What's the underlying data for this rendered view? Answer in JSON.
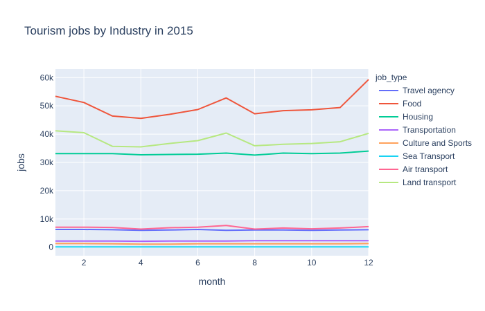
{
  "chart_data": {
    "type": "line",
    "title": "Tourism jobs by Industry in 2015",
    "xlabel": "month",
    "ylabel": "jobs",
    "xlim": [
      1,
      12
    ],
    "ylim": [
      -3000,
      63000
    ],
    "x_ticks": [
      2,
      4,
      6,
      8,
      10,
      12
    ],
    "x_tick_labels": [
      "2",
      "4",
      "6",
      "8",
      "10",
      "12"
    ],
    "y_ticks": [
      0,
      10000,
      20000,
      30000,
      40000,
      50000,
      60000
    ],
    "y_tick_labels": [
      "0",
      "10k",
      "20k",
      "30k",
      "40k",
      "50k",
      "60k"
    ],
    "grid": true,
    "legend_title": "job_type",
    "legend_position": "right",
    "x": [
      1,
      2,
      3,
      4,
      5,
      6,
      7,
      8,
      9,
      10,
      11,
      12
    ],
    "series": [
      {
        "name": "Travel agency",
        "color": "#636efa",
        "values": [
          6300,
          6300,
          6200,
          6000,
          6100,
          6300,
          6000,
          6100,
          6100,
          6000,
          6100,
          6200
        ]
      },
      {
        "name": "Food",
        "color": "#ef553b",
        "values": [
          53400,
          51200,
          46400,
          45600,
          47000,
          48700,
          52800,
          47200,
          48300,
          48600,
          49400,
          59300
        ]
      },
      {
        "name": "Housing",
        "color": "#00cc96",
        "values": [
          33100,
          33100,
          33100,
          32700,
          32800,
          32900,
          33300,
          32600,
          33300,
          33100,
          33300,
          34000
        ]
      },
      {
        "name": "Transportation",
        "color": "#ab63fa",
        "values": [
          2200,
          2200,
          2200,
          2100,
          2200,
          2200,
          2200,
          2300,
          2300,
          2300,
          2300,
          2300
        ]
      },
      {
        "name": "Culture and Sports",
        "color": "#ffa15a",
        "values": [
          1300,
          1300,
          1200,
          1100,
          1100,
          1200,
          1200,
          1200,
          1200,
          1200,
          1200,
          1300
        ]
      },
      {
        "name": "Sea Transport",
        "color": "#19d3f3",
        "values": [
          100,
          100,
          100,
          100,
          100,
          100,
          100,
          100,
          100,
          100,
          100,
          100
        ]
      },
      {
        "name": "Air transport",
        "color": "#ff6692",
        "values": [
          7100,
          7100,
          7000,
          6400,
          6900,
          7100,
          7700,
          6400,
          6800,
          6500,
          6800,
          7300
        ]
      },
      {
        "name": "Land transport",
        "color": "#b6e880",
        "values": [
          41200,
          40500,
          35700,
          35500,
          36700,
          37700,
          40400,
          35900,
          36400,
          36700,
          37300,
          40300
        ]
      }
    ]
  },
  "colors": {
    "plot_background": "#e5ecf6",
    "gridline": "#ffffff",
    "text": "#2a3f5f"
  }
}
